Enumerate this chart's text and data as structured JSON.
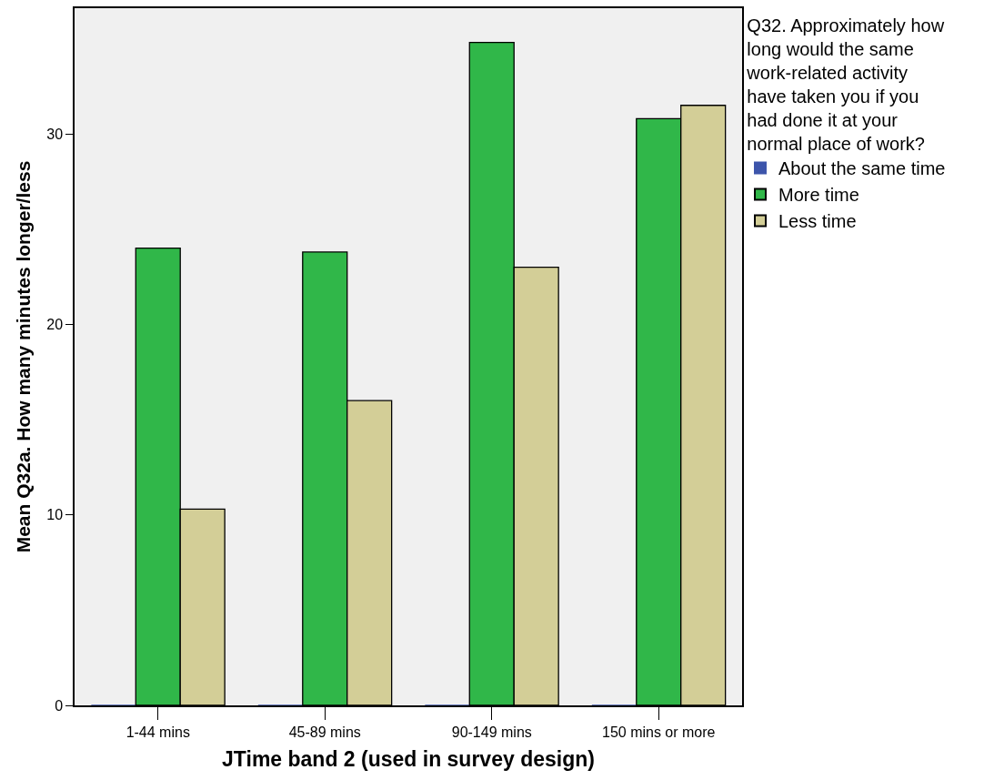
{
  "chart_data": {
    "type": "bar",
    "xlabel": "JTime band 2 (used in survey design)",
    "ylabel": "Mean Q32a. How many minutes longer/less",
    "legend_title": "Q32. Approximately how long would the same work-related activity have taken you if you had done it at your normal place of work?",
    "categories": [
      "1-44 mins",
      "45-89 mins",
      "90-149 mins",
      "150 mins or more"
    ],
    "series": [
      {
        "name": "About the same time",
        "color": "#3d55ab",
        "values": [
          0,
          0,
          0,
          0
        ]
      },
      {
        "name": "More time",
        "color": "#30b749",
        "values": [
          24.0,
          23.8,
          34.8,
          30.8
        ]
      },
      {
        "name": "Less time",
        "color": "#d3ce97",
        "values": [
          10.3,
          16.0,
          23.0,
          31.5
        ]
      }
    ],
    "ylim": [
      0,
      36.6
    ],
    "yticks": [
      0,
      10,
      20,
      30
    ],
    "grid": false,
    "legend": "top right"
  }
}
